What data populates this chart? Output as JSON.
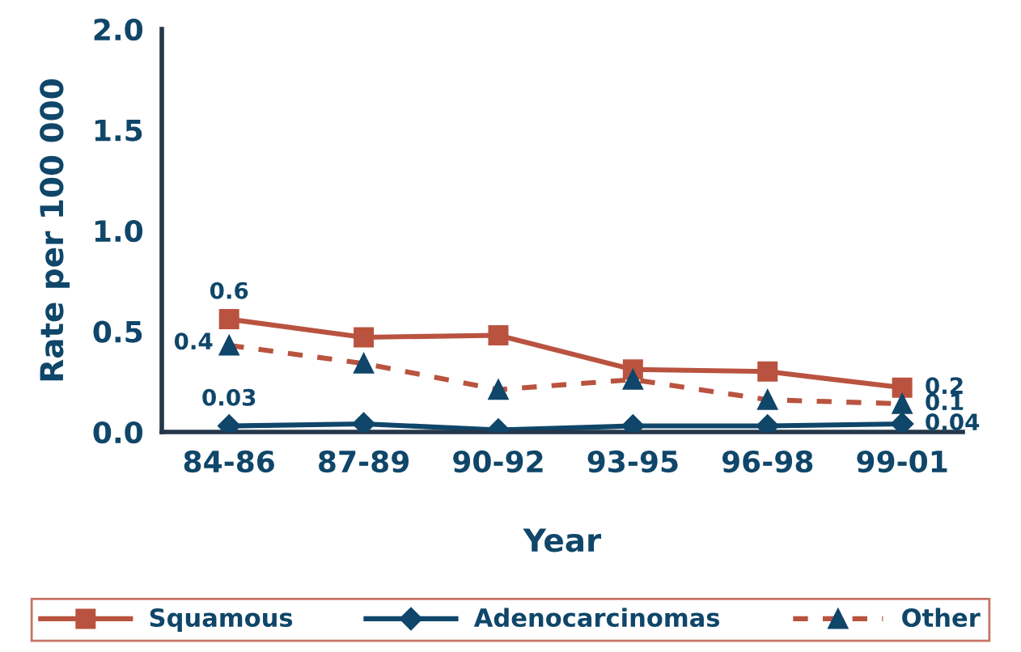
{
  "chart_data": {
    "type": "line",
    "xlabel": "Year",
    "ylabel": "Rate per 100 000",
    "categories": [
      "84-86",
      "87-89",
      "90-92",
      "93-95",
      "96-98",
      "99-01"
    ],
    "ylim": [
      0,
      2.0
    ],
    "yticks": [
      {
        "value": 0,
        "label": "0.0"
      },
      {
        "value": 0.5,
        "label": "0.5"
      },
      {
        "value": 1.0,
        "label": "1.0"
      },
      {
        "value": 1.5,
        "label": "1.5"
      },
      {
        "value": 2.0,
        "label": "2.0"
      }
    ],
    "grid": false,
    "legend": "bottom",
    "series": [
      {
        "name": "Squamous",
        "color": "#b9533f",
        "marker": "square",
        "line_style": "solid",
        "values": [
          0.56,
          0.47,
          0.48,
          0.31,
          0.3,
          0.22
        ],
        "value_labels": [
          "0.6",
          null,
          null,
          null,
          null,
          "0.2"
        ]
      },
      {
        "name": "Adenocarcinomas",
        "color": "#0f4669",
        "marker": "diamond",
        "line_style": "solid",
        "values": [
          0.03,
          0.04,
          0.01,
          0.03,
          0.03,
          0.04
        ],
        "value_labels": [
          "0.03",
          null,
          null,
          null,
          null,
          "0.04"
        ]
      },
      {
        "name": "Other",
        "color": "#b9533f",
        "colors": [
          "#0f4669",
          "#0f4669",
          "#0f4669",
          "#0f4669",
          "#0f4669",
          "#0f4669"
        ],
        "marker": "triangle",
        "line_style": "dashed",
        "values": [
          0.43,
          0.34,
          0.21,
          0.26,
          0.16,
          0.14
        ],
        "value_labels": [
          "0.4",
          null,
          null,
          null,
          null,
          "0.1"
        ]
      }
    ]
  }
}
